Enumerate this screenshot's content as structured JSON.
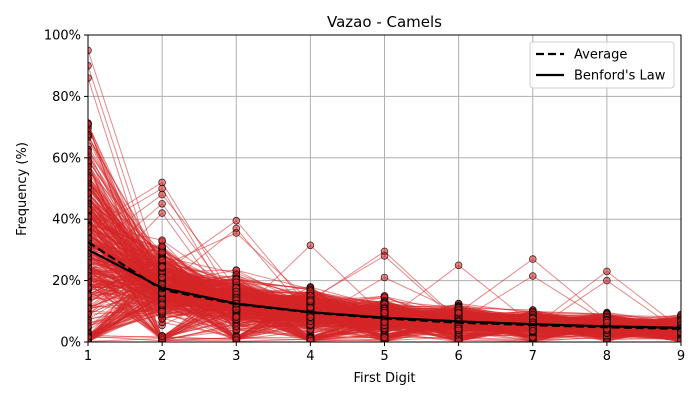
{
  "chart_data": {
    "type": "line",
    "title": "Vazao - Camels",
    "xlabel": "First Digit",
    "ylabel": "Frequency (%)",
    "x": [
      1,
      2,
      3,
      4,
      5,
      6,
      7,
      8,
      9
    ],
    "xlim": [
      1,
      9
    ],
    "ylim": [
      0,
      100
    ],
    "xticks": [
      "1",
      "2",
      "3",
      "4",
      "5",
      "6",
      "7",
      "8",
      "9"
    ],
    "yticks": [
      "0%",
      "20%",
      "40%",
      "60%",
      "80%",
      "100%"
    ],
    "grid": true,
    "legend_position": "top-right",
    "series": [
      {
        "name": "Average",
        "style": "dashed",
        "color": "#000000",
        "values": [
          32.5,
          17.0,
          12.3,
          9.6,
          7.7,
          6.3,
          5.5,
          4.8,
          4.3
        ]
      },
      {
        "name": "Benford's Law",
        "style": "solid",
        "color": "#000000",
        "values": [
          30.1,
          17.6,
          12.5,
          9.7,
          7.9,
          6.7,
          5.8,
          5.1,
          4.6
        ]
      }
    ],
    "station_curves": {
      "description_color": "#d62728",
      "marker_fill": "#d62728",
      "marker_edge": "#000000",
      "count": 420,
      "max_observed": [
        95,
        52,
        39.5,
        31.5,
        29.5,
        25,
        27,
        23,
        15
      ],
      "notable_points": [
        {
          "x": 1,
          "y": 95
        },
        {
          "x": 1,
          "y": 90
        },
        {
          "x": 1,
          "y": 86
        },
        {
          "x": 2,
          "y": 52
        },
        {
          "x": 2,
          "y": 50
        },
        {
          "x": 2,
          "y": 48
        },
        {
          "x": 2,
          "y": 45
        },
        {
          "x": 2,
          "y": 42
        },
        {
          "x": 3,
          "y": 39.5
        },
        {
          "x": 3,
          "y": 37
        },
        {
          "x": 3,
          "y": 35.5
        },
        {
          "x": 4,
          "y": 31.5
        },
        {
          "x": 5,
          "y": 29.5
        },
        {
          "x": 5,
          "y": 28
        },
        {
          "x": 5,
          "y": 21
        },
        {
          "x": 6,
          "y": 25
        },
        {
          "x": 7,
          "y": 27
        },
        {
          "x": 7,
          "y": 21.5
        },
        {
          "x": 8,
          "y": 23
        },
        {
          "x": 8,
          "y": 20
        }
      ]
    }
  }
}
